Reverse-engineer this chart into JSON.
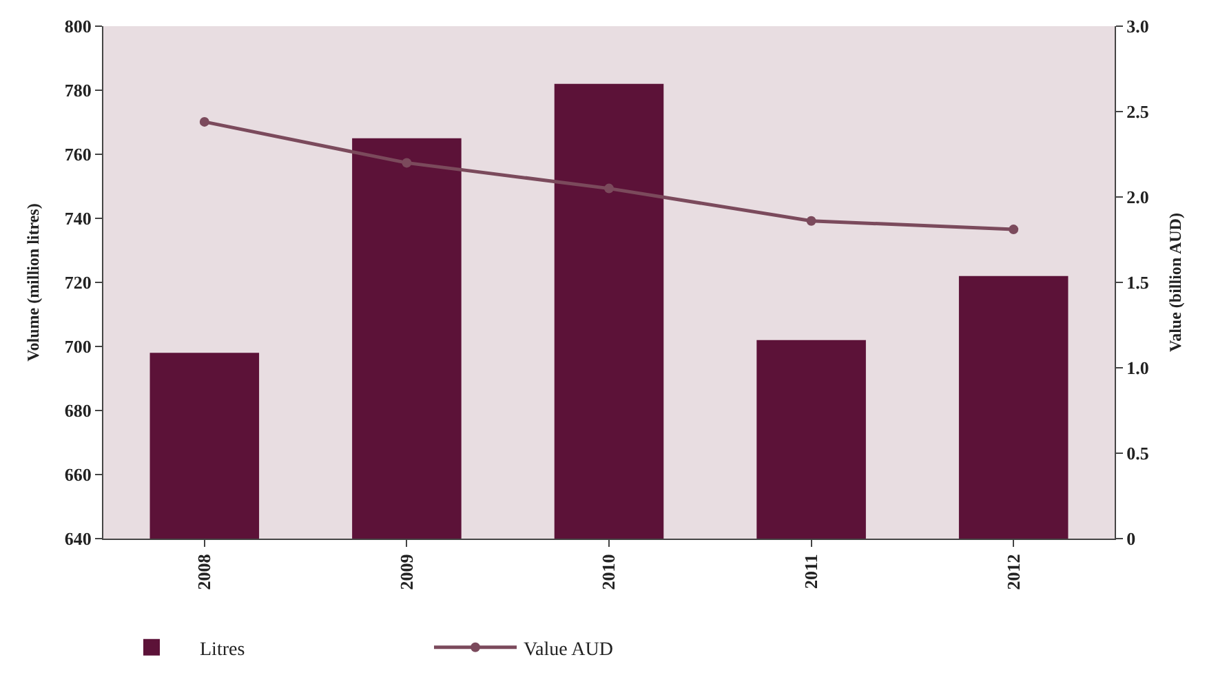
{
  "chart_data": {
    "type": "bar",
    "categories": [
      "2008",
      "2009",
      "2010",
      "2011",
      "2012"
    ],
    "series": [
      {
        "name": "Litres",
        "color": "#5c1238",
        "values": [
          698,
          765,
          782,
          702,
          722
        ]
      },
      {
        "name": "Value AUD",
        "type": "line",
        "axis": "y2",
        "color": "#7b4a5c",
        "values": [
          2.44,
          2.2,
          2.05,
          1.86,
          1.81
        ]
      }
    ],
    "ylabel": "Volume (million litres)",
    "y2label": "Value (billion AUD)",
    "ylim": [
      640,
      800
    ],
    "yticks": [
      640,
      660,
      680,
      700,
      720,
      740,
      760,
      780,
      800
    ],
    "y2lim": [
      0,
      3
    ],
    "y2ticks": [
      0,
      0.5,
      {
        "value": 1,
        "label": "1.0"
      },
      1.5,
      {
        "value": 2,
        "label": "2.0"
      },
      2.5,
      {
        "value": 3,
        "label": "3.0"
      }
    ],
    "grid": false,
    "legend": "bottom",
    "marker": "circle",
    "line_style": "solid"
  }
}
